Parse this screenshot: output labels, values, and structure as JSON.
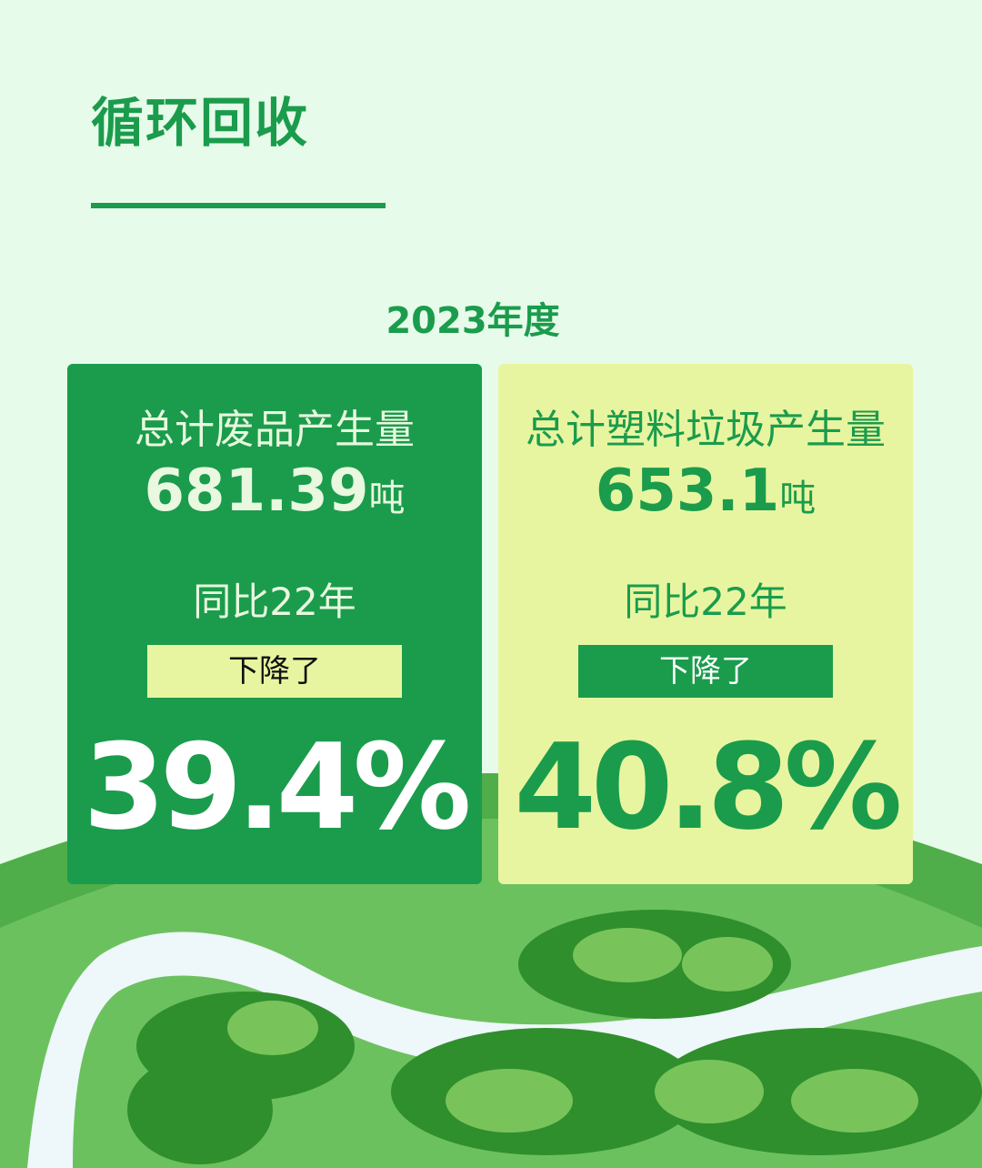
{
  "title": "循环回收",
  "year": "2023年度",
  "cards": [
    {
      "label": "总计废品产生量",
      "value": "681.39",
      "unit": "吨",
      "compare": "同比22年",
      "change": "下降了",
      "percent": "39.4%"
    },
    {
      "label": "总计塑料垃圾产生量",
      "value": "653.1",
      "unit": "吨",
      "compare": "同比22年",
      "change": "下降了",
      "percent": "40.8%"
    }
  ],
  "colors": {
    "primary": "#1a9c4c",
    "accent": "#e8f5a0",
    "background": "#e7fbea"
  }
}
